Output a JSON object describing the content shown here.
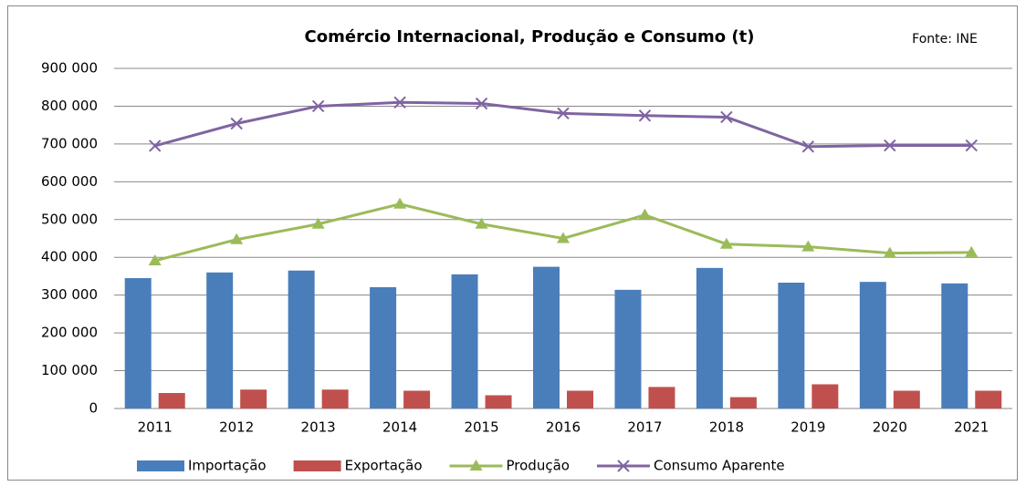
{
  "chart_data": {
    "type": "bar",
    "title": "Comércio Internacional, Produção e Consumo (t)",
    "annotation": "Fonte: INE",
    "categories": [
      "2011",
      "2012",
      "2013",
      "2014",
      "2015",
      "2016",
      "2017",
      "2018",
      "2019",
      "2020",
      "2021"
    ],
    "series": [
      {
        "name": "Importação",
        "type": "bar",
        "color": "#4a7ebb",
        "values": [
          345000,
          360000,
          365000,
          321000,
          355000,
          375000,
          314000,
          372000,
          333000,
          335000,
          331000
        ]
      },
      {
        "name": "Exportação",
        "type": "bar",
        "color": "#c0504d",
        "values": [
          41000,
          50000,
          50000,
          47000,
          35000,
          47000,
          57000,
          30000,
          64000,
          47000,
          47000
        ]
      },
      {
        "name": "Produção",
        "type": "line",
        "marker": "triangle",
        "color": "#9bbb59",
        "values": [
          391000,
          447000,
          488000,
          541000,
          488000,
          450000,
          512000,
          435000,
          428000,
          411000,
          413000
        ]
      },
      {
        "name": "Consumo Aparente",
        "type": "line",
        "marker": "x",
        "color": "#8064a2",
        "values": [
          695000,
          754000,
          800000,
          810000,
          807000,
          781000,
          775000,
          771000,
          693000,
          696000,
          696000
        ]
      }
    ],
    "ylim": [
      0,
      900000
    ],
    "yticks": [
      0,
      {
        "value": 100000,
        "label": "100 000"
      },
      {
        "value": 200000,
        "label": "200 000"
      },
      {
        "value": 300000,
        "label": "300 000"
      },
      {
        "value": 400000,
        "label": "400 000"
      },
      {
        "value": 500000,
        "label": "500 000"
      },
      {
        "value": 600000,
        "label": "600 000"
      },
      {
        "value": 700000,
        "label": "700 000"
      },
      {
        "value": 800000,
        "label": "800 000"
      },
      {
        "value": 900000,
        "label": "900 000"
      }
    ],
    "grid": true,
    "legend": "bottom"
  }
}
